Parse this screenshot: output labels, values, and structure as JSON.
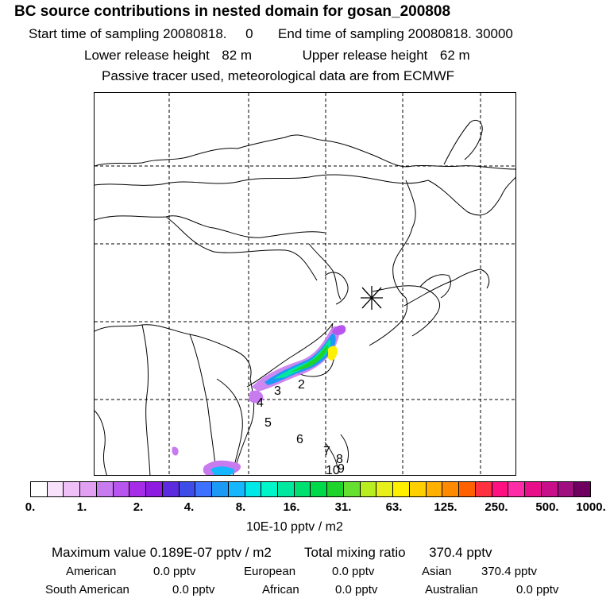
{
  "title": "BC  source contributions in nested domain for gosan_200808",
  "sampling": {
    "start_label": "Start time of sampling",
    "start_value": "20080818.     0",
    "end_label": "End time of sampling",
    "end_value": "20080818. 30000"
  },
  "release": {
    "lower_label": "Lower release height",
    "lower_value": "82 m",
    "upper_label": "Upper release height",
    "upper_value": "62 m"
  },
  "tracer_note": "Passive tracer used, meteorological data are from ECMWF",
  "map": {
    "receptor_marker": "asterisk-icon",
    "trajectory_labels": [
      "2",
      "3",
      "4",
      "5",
      "6",
      "7",
      "8",
      "9",
      "10"
    ]
  },
  "colorbar": {
    "colors": [
      "#ffffff",
      "#f7e1fb",
      "#efbff7",
      "#e2a0f3",
      "#c87aef",
      "#b855ee",
      "#a62ce8",
      "#8f1ae0",
      "#5c2bdf",
      "#3f4de8",
      "#3c72ff",
      "#1c98f5",
      "#17b7ff",
      "#00e8e8",
      "#00f6c8",
      "#00e8a0",
      "#00e070",
      "#00d94a",
      "#1ed42a",
      "#66e030",
      "#b8ee20",
      "#e8f01a",
      "#fff000",
      "#ffd000",
      "#ffb000",
      "#ff8a00",
      "#ff6000",
      "#ff3040",
      "#ff1080",
      "#ff2ca8",
      "#e8108a",
      "#c80f8a",
      "#a00f80",
      "#700060"
    ],
    "tick_labels": [
      "0.",
      "1.",
      "2.",
      "4.",
      "8.",
      "16.",
      "31.",
      "63.",
      "125.",
      "250.",
      "500.",
      "1000."
    ],
    "unit": "10E-10 pptv / m2"
  },
  "summary": {
    "max_label": "Maximum value",
    "max_value": "0.189E-07 pptv / m2",
    "total_label": "Total mixing ratio",
    "total_value": "370.4 pptv",
    "regions": [
      {
        "name": "American",
        "value": "0.0 pptv"
      },
      {
        "name": "European",
        "value": "0.0 pptv"
      },
      {
        "name": "Asian",
        "value": "370.4 pptv"
      },
      {
        "name": "South American",
        "value": "0.0 pptv"
      },
      {
        "name": "African",
        "value": "0.0 pptv"
      },
      {
        "name": "Australian",
        "value": "0.0 pptv"
      }
    ]
  }
}
